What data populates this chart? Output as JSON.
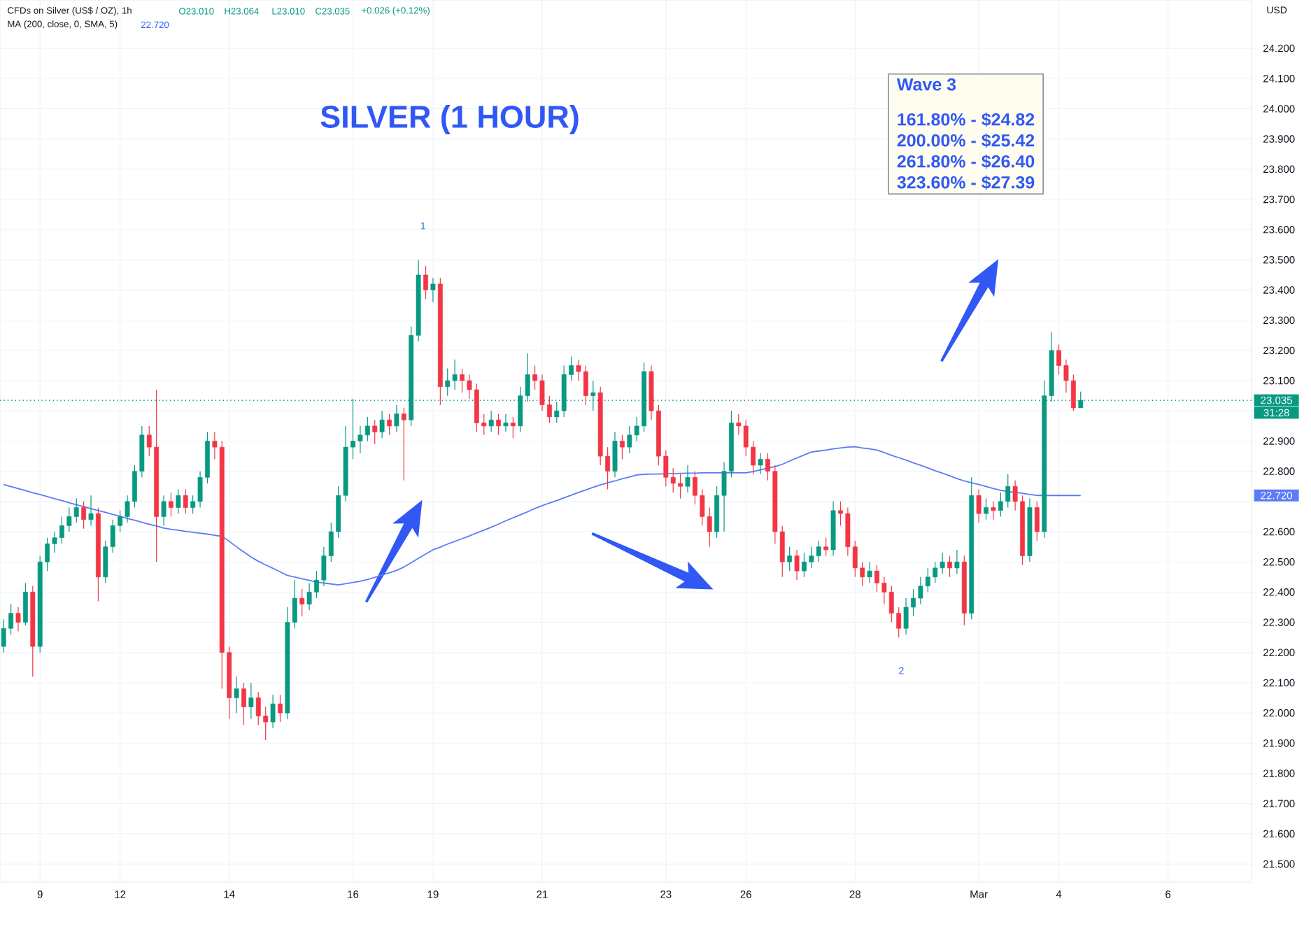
{
  "chart_data": {
    "type": "candlestick",
    "title": "SILVER (1 HOUR)",
    "subtitle": "CFDs on Silver (US$ / OZ), 1h",
    "ylabel": "USD",
    "categories": [
      null,
      null,
      null,
      null,
      null,
      "9",
      null,
      null,
      null,
      null,
      null,
      null,
      null,
      null,
      null,
      null,
      "12",
      null,
      null,
      null,
      null,
      null,
      null,
      null,
      null,
      null,
      null,
      null,
      null,
      null,
      null,
      "14",
      null,
      null,
      null,
      null,
      null,
      null,
      null,
      null,
      null,
      null,
      null,
      null,
      null,
      null,
      null,
      null,
      "16",
      null,
      null,
      null,
      null,
      null,
      null,
      null,
      null,
      null,
      null,
      "19",
      null,
      null,
      null,
      null,
      null,
      null,
      null,
      null,
      null,
      null,
      null,
      null,
      null,
      null,
      "21",
      null,
      null,
      null,
      null,
      null,
      null,
      null,
      null,
      null,
      null,
      null,
      null,
      null,
      null,
      null,
      null,
      "23",
      null,
      null,
      null,
      null,
      null,
      null,
      null,
      null,
      null,
      null,
      "26",
      null,
      null,
      null,
      null,
      null,
      null,
      null,
      null,
      null,
      null,
      null,
      null,
      null,
      null,
      "28",
      null,
      null,
      null,
      null,
      null,
      null,
      null,
      null,
      null,
      null,
      null,
      null,
      null,
      null,
      null,
      null,
      "Mar",
      null,
      null,
      null,
      null,
      null,
      null,
      null,
      null,
      null,
      null,
      "4",
      null,
      null,
      null,
      null,
      null,
      null,
      null,
      null,
      null,
      null,
      null,
      null,
      null,
      null,
      "6",
      null,
      null,
      null,
      null,
      null,
      null,
      null,
      null,
      null,
      null,
      null
    ],
    "ohlc": [
      [
        22.22,
        22.31,
        22.2,
        22.28
      ],
      [
        22.28,
        22.36,
        22.26,
        22.33
      ],
      [
        22.33,
        22.35,
        22.27,
        22.3
      ],
      [
        22.3,
        22.43,
        22.29,
        22.4
      ],
      [
        22.4,
        22.42,
        22.12,
        22.22
      ],
      [
        22.22,
        22.52,
        22.2,
        22.5
      ],
      [
        22.5,
        22.58,
        22.47,
        22.56
      ],
      [
        22.56,
        22.6,
        22.53,
        22.58
      ],
      [
        22.58,
        22.65,
        22.56,
        22.62
      ],
      [
        22.62,
        22.68,
        22.6,
        22.65
      ],
      [
        22.65,
        22.71,
        22.63,
        22.68
      ],
      [
        22.68,
        22.7,
        22.61,
        22.64
      ],
      [
        22.64,
        22.72,
        22.62,
        22.66
      ],
      [
        22.66,
        22.68,
        22.37,
        22.45
      ],
      [
        22.45,
        22.57,
        22.43,
        22.55
      ],
      [
        22.55,
        22.64,
        22.53,
        22.62
      ],
      [
        22.62,
        22.67,
        22.6,
        22.65
      ],
      [
        22.65,
        22.72,
        22.63,
        22.7
      ],
      [
        22.7,
        22.82,
        22.68,
        22.8
      ],
      [
        22.8,
        22.95,
        22.78,
        22.92
      ],
      [
        22.92,
        22.95,
        22.85,
        22.88
      ],
      [
        22.88,
        23.07,
        22.5,
        22.65
      ],
      [
        22.65,
        22.72,
        22.62,
        22.7
      ],
      [
        22.7,
        22.73,
        22.65,
        22.68
      ],
      [
        22.68,
        22.74,
        22.66,
        22.72
      ],
      [
        22.72,
        22.74,
        22.66,
        22.68
      ],
      [
        22.68,
        22.72,
        22.66,
        22.7
      ],
      [
        22.7,
        22.8,
        22.68,
        22.78
      ],
      [
        22.78,
        22.93,
        22.76,
        22.9
      ],
      [
        22.9,
        22.93,
        22.84,
        22.88
      ],
      [
        22.88,
        22.9,
        22.08,
        22.2
      ],
      [
        22.2,
        22.22,
        21.98,
        22.05
      ],
      [
        22.05,
        22.12,
        22.0,
        22.08
      ],
      [
        22.08,
        22.1,
        21.96,
        22.02
      ],
      [
        22.02,
        22.1,
        21.98,
        22.05
      ],
      [
        22.05,
        22.07,
        21.96,
        21.99
      ],
      [
        21.99,
        22.02,
        21.91,
        21.97
      ],
      [
        21.97,
        22.06,
        21.95,
        22.03
      ],
      [
        22.03,
        22.06,
        21.97,
        22.0
      ],
      [
        22.0,
        22.35,
        21.98,
        22.3
      ],
      [
        22.3,
        22.44,
        22.28,
        22.38
      ],
      [
        22.38,
        22.41,
        22.32,
        22.36
      ],
      [
        22.36,
        22.43,
        22.34,
        22.4
      ],
      [
        22.4,
        22.47,
        22.38,
        22.44
      ],
      [
        22.44,
        22.55,
        22.42,
        22.52
      ],
      [
        22.52,
        22.63,
        22.5,
        22.6
      ],
      [
        22.6,
        22.75,
        22.58,
        22.72
      ],
      [
        22.72,
        22.95,
        22.7,
        22.88
      ],
      [
        22.88,
        23.04,
        22.84,
        22.9
      ],
      [
        22.9,
        22.95,
        22.86,
        22.92
      ],
      [
        22.92,
        22.98,
        22.9,
        22.95
      ],
      [
        22.95,
        22.97,
        22.89,
        22.93
      ],
      [
        22.93,
        23.0,
        22.91,
        22.97
      ],
      [
        22.97,
        22.99,
        22.92,
        22.95
      ],
      [
        22.95,
        23.02,
        22.93,
        22.99
      ],
      [
        22.99,
        23.01,
        22.77,
        22.97
      ],
      [
        22.97,
        23.28,
        22.95,
        23.25
      ],
      [
        23.25,
        23.5,
        23.23,
        23.45
      ],
      [
        23.45,
        23.48,
        23.37,
        23.4
      ],
      [
        23.4,
        23.44,
        23.36,
        23.42
      ],
      [
        23.42,
        23.44,
        23.02,
        23.08
      ],
      [
        23.08,
        23.14,
        23.05,
        23.1
      ],
      [
        23.1,
        23.17,
        23.07,
        23.12
      ],
      [
        23.12,
        23.14,
        23.06,
        23.1
      ],
      [
        23.1,
        23.12,
        23.04,
        23.07
      ],
      [
        23.07,
        23.09,
        22.93,
        22.96
      ],
      [
        22.96,
        22.99,
        22.92,
        22.95
      ],
      [
        22.95,
        23.0,
        22.93,
        22.97
      ],
      [
        22.97,
        22.99,
        22.92,
        22.95
      ],
      [
        22.95,
        22.99,
        22.93,
        22.96
      ],
      [
        22.96,
        22.98,
        22.91,
        22.95
      ],
      [
        22.95,
        23.08,
        22.93,
        23.05
      ],
      [
        23.05,
        23.19,
        23.03,
        23.12
      ],
      [
        23.12,
        23.15,
        23.07,
        23.1
      ],
      [
        23.1,
        23.12,
        23.0,
        23.02
      ],
      [
        23.02,
        23.05,
        22.96,
        22.98
      ],
      [
        22.98,
        23.03,
        22.96,
        23.0
      ],
      [
        23.0,
        23.15,
        22.98,
        23.12
      ],
      [
        23.12,
        23.18,
        23.1,
        23.15
      ],
      [
        23.15,
        23.17,
        23.1,
        23.13
      ],
      [
        23.13,
        23.15,
        23.02,
        23.05
      ],
      [
        23.05,
        23.1,
        23.0,
        23.06
      ],
      [
        23.06,
        23.08,
        22.82,
        22.85
      ],
      [
        22.85,
        22.88,
        22.74,
        22.8
      ],
      [
        22.8,
        22.93,
        22.78,
        22.9
      ],
      [
        22.9,
        22.92,
        22.84,
        22.88
      ],
      [
        22.88,
        22.95,
        22.86,
        22.92
      ],
      [
        22.92,
        22.98,
        22.9,
        22.95
      ],
      [
        22.95,
        23.16,
        22.93,
        23.13
      ],
      [
        23.13,
        23.15,
        22.97,
        23.0
      ],
      [
        23.0,
        23.02,
        22.82,
        22.85
      ],
      [
        22.85,
        22.87,
        22.75,
        22.78
      ],
      [
        22.78,
        22.81,
        22.73,
        22.76
      ],
      [
        22.76,
        22.79,
        22.71,
        22.75
      ],
      [
        22.75,
        22.82,
        22.73,
        22.78
      ],
      [
        22.78,
        22.8,
        22.69,
        22.72
      ],
      [
        22.72,
        22.74,
        22.62,
        22.65
      ],
      [
        22.65,
        22.68,
        22.55,
        22.6
      ],
      [
        22.6,
        22.75,
        22.58,
        22.72
      ],
      [
        22.72,
        22.83,
        22.6,
        22.8
      ],
      [
        22.8,
        23.0,
        22.78,
        22.96
      ],
      [
        22.96,
        22.99,
        22.92,
        22.95
      ],
      [
        22.95,
        22.97,
        22.85,
        22.88
      ],
      [
        22.88,
        22.9,
        22.79,
        22.82
      ],
      [
        22.82,
        22.86,
        22.79,
        22.84
      ],
      [
        22.84,
        22.86,
        22.77,
        22.8
      ],
      [
        22.8,
        22.82,
        22.56,
        22.6
      ],
      [
        22.6,
        22.62,
        22.45,
        22.5
      ],
      [
        22.5,
        22.55,
        22.47,
        22.52
      ],
      [
        22.52,
        22.54,
        22.44,
        22.47
      ],
      [
        22.47,
        22.53,
        22.45,
        22.5
      ],
      [
        22.5,
        22.55,
        22.48,
        22.52
      ],
      [
        22.52,
        22.57,
        22.5,
        22.55
      ],
      [
        22.55,
        22.58,
        22.52,
        22.54
      ],
      [
        22.54,
        22.7,
        22.52,
        22.67
      ],
      [
        22.67,
        22.7,
        22.62,
        22.66
      ],
      [
        22.66,
        22.68,
        22.52,
        22.55
      ],
      [
        22.55,
        22.57,
        22.45,
        22.48
      ],
      [
        22.48,
        22.5,
        22.42,
        22.45
      ],
      [
        22.45,
        22.5,
        22.43,
        22.47
      ],
      [
        22.47,
        22.49,
        22.4,
        22.43
      ],
      [
        22.43,
        22.45,
        22.36,
        22.4
      ],
      [
        22.4,
        22.42,
        22.3,
        22.33
      ],
      [
        22.33,
        22.35,
        22.25,
        22.28
      ],
      [
        22.28,
        22.38,
        22.26,
        22.35
      ],
      [
        22.35,
        22.41,
        22.32,
        22.38
      ],
      [
        22.38,
        22.45,
        22.36,
        22.42
      ],
      [
        22.42,
        22.48,
        22.4,
        22.45
      ],
      [
        22.45,
        22.5,
        22.43,
        22.48
      ],
      [
        22.48,
        22.53,
        22.46,
        22.5
      ],
      [
        22.5,
        22.52,
        22.45,
        22.48
      ],
      [
        22.48,
        22.54,
        22.46,
        22.5
      ],
      [
        22.5,
        22.52,
        22.29,
        22.33
      ],
      [
        22.33,
        22.78,
        22.31,
        22.72
      ],
      [
        22.72,
        22.74,
        22.63,
        22.66
      ],
      [
        22.66,
        22.71,
        22.64,
        22.68
      ],
      [
        22.68,
        22.7,
        22.64,
        22.67
      ],
      [
        22.67,
        22.73,
        22.65,
        22.7
      ],
      [
        22.7,
        22.79,
        22.68,
        22.75
      ],
      [
        22.75,
        22.77,
        22.67,
        22.7
      ],
      [
        22.7,
        22.72,
        22.49,
        22.52
      ],
      [
        22.52,
        22.71,
        22.5,
        22.68
      ],
      [
        22.68,
        22.7,
        22.57,
        22.6
      ],
      [
        22.6,
        23.1,
        22.58,
        23.05
      ],
      [
        23.05,
        23.26,
        23.03,
        23.2
      ],
      [
        23.2,
        23.22,
        23.12,
        23.15
      ],
      [
        23.15,
        23.17,
        23.06,
        23.1
      ],
      [
        23.1,
        23.12,
        23.0,
        23.01
      ],
      [
        23.01,
        23.064,
        23.01,
        23.035
      ],
      null,
      null,
      null,
      null,
      null,
      null,
      null,
      null,
      null,
      null,
      null,
      null,
      null,
      null,
      null,
      null,
      null,
      null,
      null,
      null,
      null,
      null,
      null
    ],
    "colors": [
      "#089981",
      "#089981",
      "#f23645",
      "#089981",
      "#f23645",
      "#089981",
      "#089981",
      "#089981",
      "#089981",
      "#089981",
      "#089981",
      "#f23645",
      "#089981",
      "#f23645",
      "#089981",
      "#089981",
      "#089981",
      "#089981",
      "#089981",
      "#089981",
      "#f23645",
      "#f23645",
      "#089981",
      "#f23645",
      "#089981",
      "#f23645",
      "#089981",
      "#089981",
      "#089981",
      "#f23645",
      "#f23645",
      "#f23645",
      "#089981",
      "#f23645",
      "#089981",
      "#f23645",
      "#f23645",
      "#089981",
      "#f23645",
      "#089981",
      "#089981",
      "#f23645",
      "#089981",
      "#089981",
      "#089981",
      "#089981",
      "#089981",
      "#089981",
      "#089981",
      "#089981",
      "#089981",
      "#f23645",
      "#089981",
      "#f23645",
      "#089981",
      "#f23645",
      "#089981",
      "#089981",
      "#f23645",
      "#089981",
      "#f23645",
      "#089981",
      "#089981",
      "#f23645",
      "#f23645",
      "#f23645",
      "#f23645",
      "#089981",
      "#f23645",
      "#089981",
      "#f23645",
      "#089981",
      "#089981",
      "#f23645",
      "#f23645",
      "#f23645",
      "#089981",
      "#089981",
      "#089981",
      "#f23645",
      "#f23645",
      "#089981",
      "#f23645",
      "#f23645",
      "#089981",
      "#f23645",
      "#089981",
      "#089981",
      "#089981",
      "#f23645",
      "#f23645",
      "#f23645",
      "#f23645",
      "#f23645",
      "#089981",
      "#f23645",
      "#f23645",
      "#f23645",
      "#089981",
      "#089981",
      "#089981",
      "#f23645",
      "#f23645",
      "#f23645",
      "#089981",
      "#f23645",
      "#f23645",
      "#f23645",
      "#089981",
      "#f23645",
      "#089981",
      "#089981",
      "#089981",
      "#f23645",
      "#089981",
      "#f23645",
      "#f23645",
      "#f23645",
      "#f23645",
      "#089981",
      "#f23645",
      "#f23645",
      "#f23645",
      "#f23645",
      "#089981",
      "#089981",
      "#089981",
      "#089981",
      "#089981",
      "#089981",
      "#f23645",
      "#089981",
      "#f23645",
      "#089981",
      "#f23645",
      "#089981",
      "#f23645",
      "#089981",
      "#089981",
      "#f23645",
      "#f23645",
      "#089981",
      "#f23645",
      "#089981",
      "#089981",
      "#f23645",
      "#f23645",
      "#f23645",
      "#089981",
      null,
      null,
      null,
      null,
      null,
      null,
      null,
      null,
      null,
      null,
      null,
      null,
      null,
      null,
      null,
      null,
      null,
      null,
      null,
      null,
      null,
      null,
      null
    ],
    "series": [
      {
        "type": "line",
        "color": "#5b7cf6",
        "values": [
          22.756,
          22.749,
          22.743,
          22.736,
          22.729,
          22.723,
          22.716,
          22.709,
          22.703,
          22.696,
          22.689,
          22.683,
          22.676,
          22.67,
          22.664,
          22.657,
          22.651,
          22.644,
          22.638,
          22.631,
          22.625,
          22.619,
          22.612,
          22.608,
          22.605,
          22.601,
          22.598,
          22.595,
          22.592,
          22.588,
          22.585,
          22.568,
          22.55,
          22.533,
          22.516,
          22.502,
          22.49,
          22.479,
          22.467,
          22.455,
          22.45,
          22.444,
          22.439,
          22.433,
          22.43,
          22.427,
          22.424,
          22.428,
          22.432,
          22.436,
          22.442,
          22.449,
          22.457,
          22.464,
          22.472,
          22.483,
          22.497,
          22.512,
          22.526,
          22.54,
          22.549,
          22.559,
          22.568,
          22.577,
          22.586,
          22.596,
          22.605,
          22.615,
          22.625,
          22.636,
          22.646,
          22.656,
          22.666,
          22.677,
          22.686,
          22.695,
          22.703,
          22.712,
          22.721,
          22.73,
          22.738,
          22.747,
          22.755,
          22.762,
          22.768,
          22.775,
          22.781,
          22.788,
          22.79,
          22.791,
          22.791,
          22.792,
          22.792,
          22.793,
          22.794,
          22.794,
          22.795,
          22.795,
          22.795,
          22.795,
          22.795,
          22.795,
          22.795,
          22.799,
          22.805,
          22.81,
          22.816,
          22.823,
          22.834,
          22.844,
          22.854,
          22.864,
          22.867,
          22.87,
          22.874,
          22.877,
          22.88,
          22.881,
          22.877,
          22.874,
          22.87,
          22.862,
          22.853,
          22.845,
          22.837,
          22.828,
          22.82,
          22.811,
          22.802,
          22.794,
          22.785,
          22.776,
          22.768,
          22.762,
          22.756,
          22.75,
          22.743,
          22.737,
          22.733,
          22.73,
          22.727,
          22.723,
          22.72,
          22.72,
          22.72,
          22.72,
          22.72,
          22.72,
          22.72,
          null,
          null,
          null,
          null,
          null,
          null,
          null,
          null,
          null,
          null,
          null,
          null,
          null,
          null,
          null,
          null,
          null,
          null,
          null,
          null,
          null,
          null,
          null
        ]
      }
    ],
    "ylim": [
      21.44,
      24.36
    ],
    "yticks": [
      {
        "value": 21.5,
        "label": "21.500"
      },
      {
        "value": 21.6,
        "label": "21.600"
      },
      {
        "value": 21.7,
        "label": "21.700"
      },
      {
        "value": 21.8,
        "label": "21.800"
      },
      {
        "value": 21.9,
        "label": "21.900"
      },
      {
        "value": 22.0,
        "label": "22.000"
      },
      {
        "value": 22.1,
        "label": "22.100"
      },
      {
        "value": 22.2,
        "label": "22.200"
      },
      {
        "value": 22.3,
        "label": "22.300"
      },
      {
        "value": 22.4,
        "label": "22.400"
      },
      {
        "value": 22.5,
        "label": "22.500"
      },
      {
        "value": 22.6,
        "label": "22.600"
      },
      {
        "value": 22.7,
        "label": null
      },
      {
        "value": 22.8,
        "label": "22.800"
      },
      {
        "value": 22.9,
        "label": "22.900"
      },
      {
        "value": 23.0,
        "label": null
      },
      {
        "value": 23.1,
        "label": "23.100"
      },
      {
        "value": 23.2,
        "label": "23.200"
      },
      {
        "value": 23.3,
        "label": "23.300"
      },
      {
        "value": 23.4,
        "label": "23.400"
      },
      {
        "value": 23.5,
        "label": "23.500"
      },
      {
        "value": 23.6,
        "label": "23.600"
      },
      {
        "value": 23.7,
        "label": "23.700"
      },
      {
        "value": 23.8,
        "label": "23.800"
      },
      {
        "value": 23.9,
        "label": "23.900"
      },
      {
        "value": 24.0,
        "label": "24.000"
      },
      {
        "value": 24.1,
        "label": "24.100"
      },
      {
        "value": 24.2,
        "label": "24.200"
      }
    ],
    "grid": true,
    "ref_lines": [
      {
        "axis": "y",
        "value": 23.035,
        "label": "23.035",
        "color": "#089981",
        "line_style": "dotted"
      }
    ],
    "annotations": [
      "MA (200, close, 0, SMA, 5)",
      "22.720",
      "O23.010",
      "H23.064",
      "L23.010",
      "C23.035",
      "+0.026 (+0.12%)",
      "Wave 3",
      "161.80% - $24.82",
      "200.00% - $25.42",
      "261.80% - $26.40",
      "323.60% - $27.39",
      "22.720",
      "31:28",
      "1",
      "2"
    ]
  }
}
